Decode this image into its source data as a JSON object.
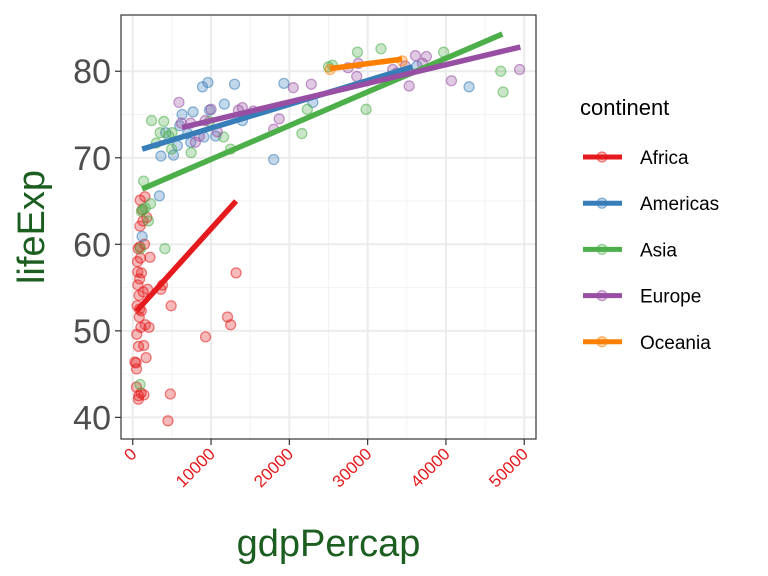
{
  "chart_data": {
    "type": "scatter",
    "xlabel": "gdpPercap",
    "ylabel": "lifeExp",
    "xlim": [
      -1500,
      51500
    ],
    "ylim": [
      37.5,
      86.5
    ],
    "x_ticks": [
      0,
      10000,
      20000,
      30000,
      40000,
      50000
    ],
    "x_tick_labels": [
      "0",
      "10000",
      "20000",
      "30000",
      "40000",
      "50000"
    ],
    "y_ticks": [
      40,
      50,
      60,
      70,
      80
    ],
    "y_tick_labels": [
      "40",
      "50",
      "60",
      "70",
      "80"
    ],
    "grid": true,
    "legend": {
      "title": "continent",
      "position": "right"
    },
    "colors": {
      "axis_title": "#1b5e20",
      "x_tick_labels": "#e41a1c",
      "y_tick_labels": "#4d4d4d",
      "grid_major": "#ebebeb",
      "grid_minor": "#f3f3f3",
      "panel_border": "#333333"
    },
    "series": [
      {
        "name": "Africa",
        "color": "#E41A1C",
        "trend": {
          "x": [
            500,
            13200
          ],
          "y": [
            52.3,
            65.0
          ]
        },
        "points": [
          [
            277,
            46.4
          ],
          [
            420,
            46.3
          ],
          [
            470,
            43.5
          ],
          [
            480,
            45.6
          ],
          [
            520,
            49.6
          ],
          [
            560,
            52.9
          ],
          [
            600,
            58.0
          ],
          [
            640,
            56.8
          ],
          [
            650,
            55.3
          ],
          [
            700,
            59.5
          ],
          [
            720,
            42.1
          ],
          [
            740,
            48.2
          ],
          [
            760,
            42.5
          ],
          [
            800,
            54.1
          ],
          [
            830,
            51.6
          ],
          [
            860,
            52.5
          ],
          [
            880,
            56.0
          ],
          [
            900,
            59.7
          ],
          [
            920,
            62.1
          ],
          [
            950,
            65.1
          ],
          [
            980,
            58.4
          ],
          [
            1040,
            50.4
          ],
          [
            1060,
            42.8
          ],
          [
            1090,
            52.3
          ],
          [
            1110,
            56.7
          ],
          [
            1200,
            64.0
          ],
          [
            1300,
            62.7
          ],
          [
            1330,
            54.5
          ],
          [
            1400,
            48.3
          ],
          [
            1430,
            42.6
          ],
          [
            1500,
            60.0
          ],
          [
            1560,
            65.5
          ],
          [
            1600,
            50.7
          ],
          [
            1700,
            46.9
          ],
          [
            1800,
            63.1
          ],
          [
            1900,
            54.8
          ],
          [
            2080,
            50.4
          ],
          [
            2200,
            58.5
          ],
          [
            3600,
            54.8
          ],
          [
            3800,
            55.3
          ],
          [
            4500,
            39.6
          ],
          [
            4800,
            42.7
          ],
          [
            4900,
            52.9
          ],
          [
            9300,
            49.3
          ],
          [
            12100,
            51.6
          ],
          [
            12500,
            50.7
          ],
          [
            13200,
            56.7
          ]
        ]
      },
      {
        "name": "Americas",
        "color": "#377EB8",
        "trend": {
          "x": [
            1200,
            35700
          ],
          "y": [
            71.0,
            80.5
          ]
        },
        "points": [
          [
            1200,
            60.9
          ],
          [
            3400,
            65.6
          ],
          [
            3600,
            70.2
          ],
          [
            4200,
            72.9
          ],
          [
            5200,
            70.3
          ],
          [
            5700,
            71.4
          ],
          [
            6000,
            73.7
          ],
          [
            6300,
            75.0
          ],
          [
            7000,
            72.8
          ],
          [
            7400,
            71.8
          ],
          [
            7700,
            75.3
          ],
          [
            8900,
            78.2
          ],
          [
            9100,
            72.4
          ],
          [
            9600,
            78.7
          ],
          [
            9800,
            75.5
          ],
          [
            10600,
            72.5
          ],
          [
            11700,
            76.2
          ],
          [
            13000,
            78.5
          ],
          [
            14000,
            74.3
          ],
          [
            18000,
            69.8
          ],
          [
            19300,
            78.6
          ],
          [
            23000,
            76.4
          ],
          [
            36300,
            80.6
          ],
          [
            42950,
            78.2
          ]
        ]
      },
      {
        "name": "Asia",
        "color": "#4DAF4A",
        "trend": {
          "x": [
            1200,
            47200
          ],
          "y": [
            66.4,
            84.3
          ]
        },
        "points": [
          [
            940,
            43.8
          ],
          [
            980,
            59.5
          ],
          [
            1100,
            63.8
          ],
          [
            1300,
            64.0
          ],
          [
            1390,
            67.3
          ],
          [
            1600,
            64.2
          ],
          [
            2000,
            62.7
          ],
          [
            2280,
            64.7
          ],
          [
            2400,
            74.3
          ],
          [
            3000,
            71.7
          ],
          [
            3500,
            72.9
          ],
          [
            3970,
            74.2
          ],
          [
            4100,
            59.5
          ],
          [
            4600,
            72.5
          ],
          [
            4960,
            71.0
          ],
          [
            5000,
            72.9
          ],
          [
            7460,
            70.6
          ],
          [
            9800,
            74.2
          ],
          [
            11600,
            72.4
          ],
          [
            12500,
            71.0
          ],
          [
            21600,
            72.8
          ],
          [
            22300,
            75.6
          ],
          [
            25000,
            80.5
          ],
          [
            25500,
            80.7
          ],
          [
            28700,
            82.2
          ],
          [
            29800,
            75.6
          ],
          [
            31700,
            82.6
          ],
          [
            39700,
            82.2
          ],
          [
            47000,
            80.0
          ],
          [
            47300,
            77.6
          ]
        ]
      },
      {
        "name": "Europe",
        "color": "#984EA3",
        "trend": {
          "x": [
            6300,
            49500
          ],
          "y": [
            73.5,
            82.8
          ]
        },
        "points": [
          [
            5900,
            76.4
          ],
          [
            6200,
            74.0
          ],
          [
            7400,
            74.0
          ],
          [
            8000,
            71.8
          ],
          [
            8500,
            72.5
          ],
          [
            9250,
            74.3
          ],
          [
            10000,
            75.6
          ],
          [
            10800,
            73.0
          ],
          [
            13500,
            75.5
          ],
          [
            14000,
            75.8
          ],
          [
            15400,
            75.4
          ],
          [
            18000,
            73.3
          ],
          [
            18700,
            74.5
          ],
          [
            20500,
            78.1
          ],
          [
            22800,
            78.5
          ],
          [
            27500,
            80.4
          ],
          [
            28600,
            79.4
          ],
          [
            28800,
            80.9
          ],
          [
            33200,
            80.2
          ],
          [
            33700,
            79.8
          ],
          [
            34800,
            80.6
          ],
          [
            35300,
            78.3
          ],
          [
            36100,
            81.8
          ],
          [
            37000,
            80.9
          ],
          [
            37500,
            81.7
          ],
          [
            40700,
            78.9
          ],
          [
            49400,
            80.2
          ]
        ]
      },
      {
        "name": "Oceania",
        "color": "#FF7F00",
        "trend": {
          "x": [
            25200,
            34400
          ],
          "y": [
            80.3,
            81.4
          ]
        },
        "points": [
          [
            25200,
            80.2
          ],
          [
            34400,
            81.2
          ]
        ]
      }
    ]
  }
}
